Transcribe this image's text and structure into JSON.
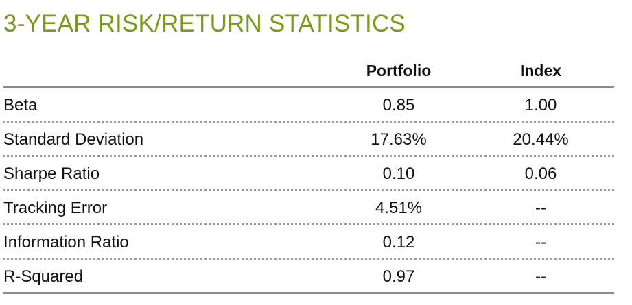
{
  "title": "3-YEAR RISK/RETURN STATISTICS",
  "colors": {
    "title": "#7a9a1e",
    "text": "#111111",
    "rule": "#8a8a8a",
    "dotted_rule": "#9a9a9a"
  },
  "table": {
    "headers": {
      "portfolio": "Portfolio",
      "index": "Index"
    },
    "rows": [
      {
        "label": "Beta",
        "portfolio": "0.85",
        "index": "1.00"
      },
      {
        "label": "Standard Deviation",
        "portfolio": "17.63%",
        "index": "20.44%"
      },
      {
        "label": "Sharpe Ratio",
        "portfolio": "0.10",
        "index": "0.06"
      },
      {
        "label": "Tracking Error",
        "portfolio": "4.51%",
        "index": "--"
      },
      {
        "label": "Information Ratio",
        "portfolio": "0.12",
        "index": "--"
      },
      {
        "label": "R-Squared",
        "portfolio": "0.97",
        "index": "--"
      }
    ]
  }
}
